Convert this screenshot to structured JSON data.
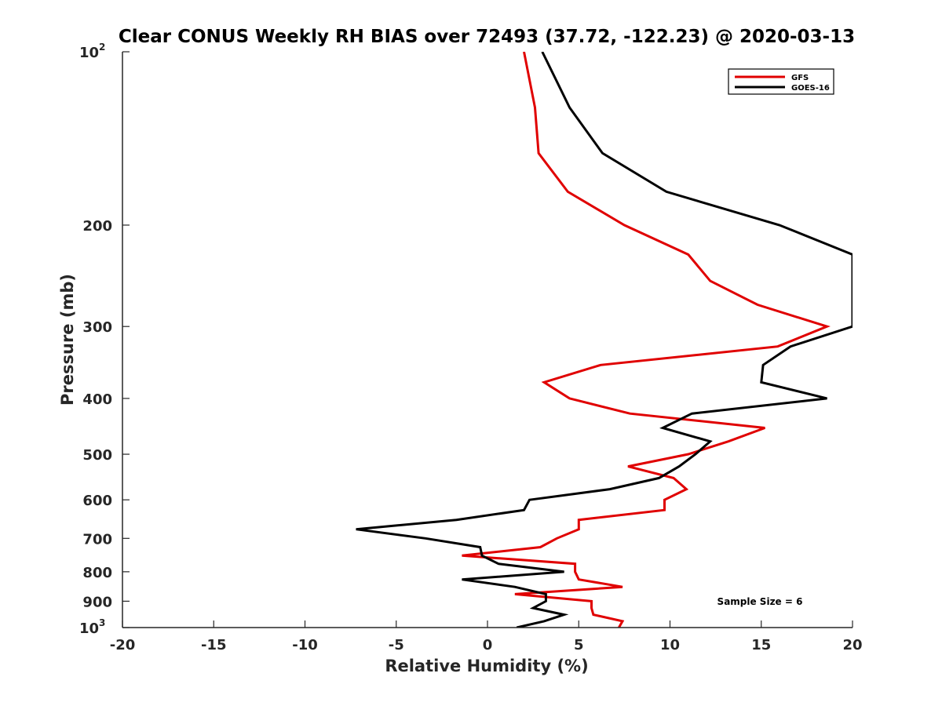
{
  "chart_data": {
    "type": "line",
    "title": "Clear CONUS Weekly RH BIAS over 72493 (37.72, -122.23) @ 2020-03-13",
    "xlabel": "Relative Humidity (%)",
    "ylabel": "Pressure (mb)",
    "xlim": [
      -20,
      20
    ],
    "ylim": [
      1000,
      100
    ],
    "y_scale": "log",
    "y_reversed": true,
    "x_ticks": [
      "-20",
      "-15",
      "-10",
      "-5",
      "0",
      "5",
      "10",
      "15",
      "20"
    ],
    "y_ticks": [
      {
        "value": 100,
        "base": "10",
        "exp": "2"
      },
      {
        "value": 200,
        "label": "200"
      },
      {
        "value": 300,
        "label": "300"
      },
      {
        "value": 400,
        "label": "400"
      },
      {
        "value": 500,
        "label": "500"
      },
      {
        "value": 600,
        "label": "600"
      },
      {
        "value": 700,
        "label": "700"
      },
      {
        "value": 800,
        "label": "800"
      },
      {
        "value": 900,
        "label": "900"
      },
      {
        "value": 1000,
        "base": "10",
        "exp": "3"
      }
    ],
    "grid": false,
    "legend_position": "top-right",
    "annotation": "Sample Size = 6",
    "series": [
      {
        "name": "GFS",
        "color": "#e00000",
        "points": [
          [
            2.0,
            100
          ],
          [
            2.6,
            125
          ],
          [
            2.8,
            150
          ],
          [
            4.4,
            175
          ],
          [
            7.5,
            200
          ],
          [
            11.0,
            225
          ],
          [
            12.2,
            250
          ],
          [
            14.8,
            275
          ],
          [
            18.6,
            300
          ],
          [
            15.9,
            325
          ],
          [
            6.2,
            350
          ],
          [
            3.1,
            375
          ],
          [
            4.5,
            400
          ],
          [
            7.8,
            425
          ],
          [
            15.2,
            450
          ],
          [
            13.2,
            475
          ],
          [
            11.0,
            500
          ],
          [
            7.7,
            525
          ],
          [
            10.2,
            550
          ],
          [
            10.9,
            575
          ],
          [
            9.7,
            600
          ],
          [
            9.7,
            625
          ],
          [
            5.0,
            650
          ],
          [
            5.0,
            675
          ],
          [
            3.8,
            700
          ],
          [
            2.9,
            725
          ],
          [
            -1.4,
            750
          ],
          [
            4.8,
            775
          ],
          [
            4.8,
            800
          ],
          [
            5.0,
            825
          ],
          [
            7.4,
            850
          ],
          [
            1.5,
            875
          ],
          [
            5.7,
            900
          ],
          [
            5.7,
            925
          ],
          [
            5.8,
            950
          ],
          [
            7.4,
            975
          ],
          [
            7.2,
            1000
          ]
        ]
      },
      {
        "name": "GOES-16",
        "color": "#000000",
        "points": [
          [
            3.0,
            100
          ],
          [
            4.5,
            125
          ],
          [
            6.3,
            150
          ],
          [
            9.8,
            175
          ],
          [
            16.0,
            200
          ],
          [
            20.0,
            225
          ],
          [
            20.0,
            250
          ],
          [
            20.0,
            275
          ],
          [
            20.0,
            300
          ],
          [
            16.6,
            325
          ],
          [
            15.1,
            350
          ],
          [
            15.0,
            375
          ],
          [
            18.6,
            400
          ],
          [
            11.2,
            425
          ],
          [
            9.6,
            450
          ],
          [
            12.2,
            475
          ],
          [
            11.4,
            500
          ],
          [
            10.5,
            525
          ],
          [
            9.4,
            550
          ],
          [
            6.7,
            575
          ],
          [
            2.3,
            600
          ],
          [
            2.0,
            625
          ],
          [
            -1.7,
            650
          ],
          [
            -7.2,
            675
          ],
          [
            -3.4,
            700
          ],
          [
            -0.4,
            725
          ],
          [
            -0.3,
            750
          ],
          [
            0.6,
            775
          ],
          [
            4.2,
            800
          ],
          [
            -1.4,
            825
          ],
          [
            1.5,
            850
          ],
          [
            3.2,
            875
          ],
          [
            3.2,
            900
          ],
          [
            2.5,
            925
          ],
          [
            4.2,
            950
          ],
          [
            3.1,
            975
          ],
          [
            1.6,
            1000
          ]
        ]
      }
    ]
  }
}
